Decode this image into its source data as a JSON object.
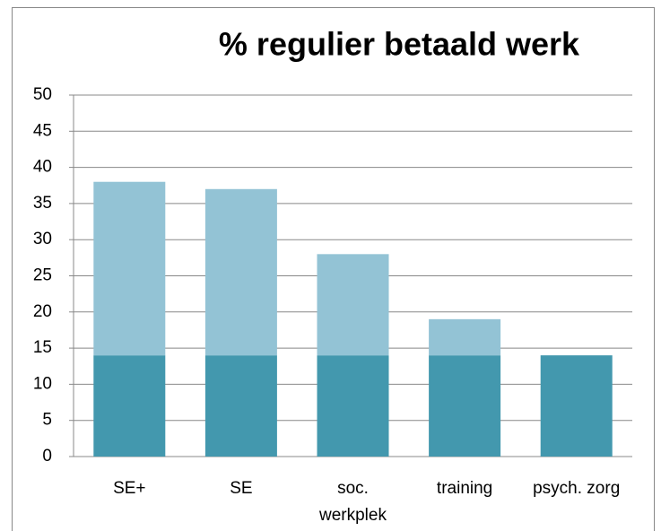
{
  "chart_data": {
    "type": "stacked_bar",
    "title": "% regulier betaald werk",
    "categories": [
      "SE+",
      "SE",
      "soc. werkplek",
      "training",
      "psych. zorg"
    ],
    "series": [
      {
        "color": "#4398ae",
        "values": [
          14,
          14,
          14,
          14,
          14
        ]
      },
      {
        "color": "#93c3d5",
        "values": [
          24,
          23,
          14,
          5,
          0
        ]
      }
    ],
    "ylim": [
      0,
      50
    ],
    "yticks": [
      0,
      5,
      10,
      15,
      20,
      25,
      30,
      35,
      40,
      45,
      50
    ],
    "grid": true
  }
}
